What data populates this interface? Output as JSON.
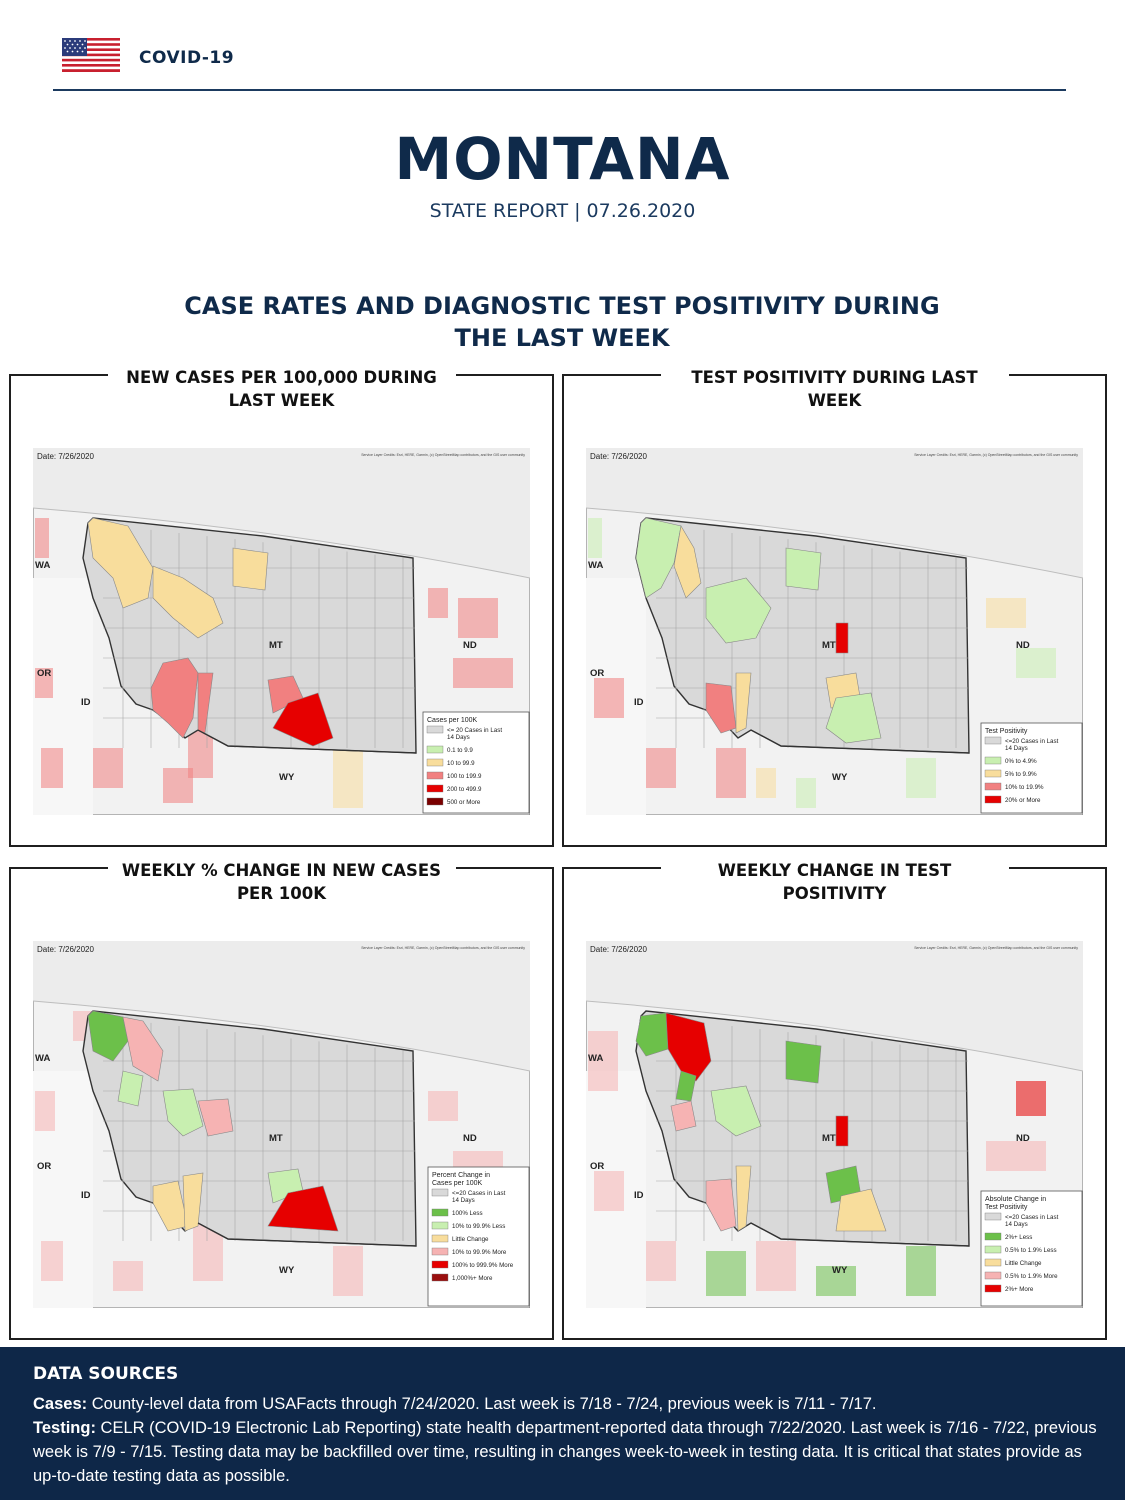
{
  "header": {
    "brand": "COVID-19",
    "flag": "us-flag-icon"
  },
  "report": {
    "state": "MONTANA",
    "subtitle": "STATE REPORT | 07.26.2020"
  },
  "section": {
    "title": "CASE RATES AND DIAGNOSTIC TEST POSITIVITY DURING THE LAST WEEK"
  },
  "panels": [
    {
      "title": "NEW CASES PER 100,000 DURING LAST WEEK",
      "date": "Date: 7/26/2020",
      "credit": "Service Layer Credits: Esri, HERE, Garmin, (c) OpenStreetMap contributors, and the GIS user community",
      "labels": {
        "wa": "WA",
        "or": "OR",
        "id": "ID",
        "mt": "MT",
        "nd": "ND",
        "wy": "WY"
      },
      "legend_title": "Cases per 100K",
      "legend": [
        {
          "label": "<= 20 Cases in Last 14 Days",
          "color": "#d9d9d9"
        },
        {
          "label": "0.1 to 9.9",
          "color": "#c8efb0"
        },
        {
          "label": "10 to 99.9",
          "color": "#f8dd9c"
        },
        {
          "label": "100 to 199.9",
          "color": "#f18080"
        },
        {
          "label": "200 to 499.9",
          "color": "#e60000"
        },
        {
          "label": "500 or More",
          "color": "#7a0000"
        }
      ]
    },
    {
      "title": "TEST POSITIVITY DURING LAST WEEK",
      "date": "Date: 7/26/2020",
      "credit": "Service Layer Credits: Esri, HERE, Garmin, (c) OpenStreetMap contributors, and the GIS user community",
      "labels": {
        "wa": "WA",
        "or": "OR",
        "id": "ID",
        "mt": "MT",
        "nd": "ND",
        "wy": "WY"
      },
      "legend_title": "Test Positivity",
      "legend": [
        {
          "label": "<=20 Cases in Last 14 Days",
          "color": "#d9d9d9"
        },
        {
          "label": "0% to 4.9%",
          "color": "#c8efb0"
        },
        {
          "label": "5% to 9.9%",
          "color": "#f8dd9c"
        },
        {
          "label": "10% to 19.9%",
          "color": "#f18080"
        },
        {
          "label": "20% or More",
          "color": "#e60000"
        }
      ]
    },
    {
      "title": "WEEKLY % CHANGE IN NEW CASES PER 100K",
      "date": "Date: 7/26/2020",
      "credit": "Service Layer Credits: Esri, HERE, Garmin, (c) OpenStreetMap contributors, and the GIS user community",
      "labels": {
        "wa": "WA",
        "or": "OR",
        "id": "ID",
        "mt": "MT",
        "nd": "ND",
        "wy": "WY"
      },
      "legend_title": "Percent Change in Cases per 100K",
      "legend": [
        {
          "label": "<=20 Cases in Last 14 Days",
          "color": "#d9d9d9"
        },
        {
          "label": "100% Less",
          "color": "#6cc04a"
        },
        {
          "label": "10% to 99.9% Less",
          "color": "#c8efb0"
        },
        {
          "label": "Little Change",
          "color": "#f8dd9c"
        },
        {
          "label": "10% to 99.9% More",
          "color": "#f6b3b3"
        },
        {
          "label": "100% to 999.9% More",
          "color": "#e60000"
        },
        {
          "label": "1,000%+ More",
          "color": "#9a0f0f"
        }
      ]
    },
    {
      "title": "WEEKLY CHANGE IN TEST POSITIVITY",
      "date": "Date: 7/26/2020",
      "credit": "Service Layer Credits: Esri, HERE, Garmin, (c) OpenStreetMap contributors, and the GIS user community",
      "labels": {
        "wa": "WA",
        "or": "OR",
        "id": "ID",
        "mt": "MT",
        "nd": "ND",
        "wy": "WY"
      },
      "legend_title": "Absolute Change in Test Positivity",
      "legend": [
        {
          "label": "<=20 Cases in Last 14 Days",
          "color": "#d9d9d9"
        },
        {
          "label": "2%+ Less",
          "color": "#6cc04a"
        },
        {
          "label": "0.5% to 1.9% Less",
          "color": "#c8efb0"
        },
        {
          "label": "Little Change",
          "color": "#f8dd9c"
        },
        {
          "label": "0.5% to 1.9% More",
          "color": "#f6b3b3"
        },
        {
          "label": "2%+ More",
          "color": "#e60000"
        }
      ]
    }
  ],
  "footer": {
    "title": "DATA SOURCES",
    "cases_label": "Cases:",
    "cases_text": " County-level data from USAFacts through 7/24/2020. Last week is 7/18 - 7/24, previous week is 7/11 - 7/17.",
    "testing_label": "Testing:",
    "testing_text": " CELR (COVID-19 Electronic Lab Reporting) state health department-reported data through 7/22/2020. Last week is 7/16 - 7/22, previous week is 7/9 - 7/15. Testing data may be backfilled over time, resulting in changes week-to-week in testing data. It is critical that states provide as up-to-date testing data as possible."
  }
}
